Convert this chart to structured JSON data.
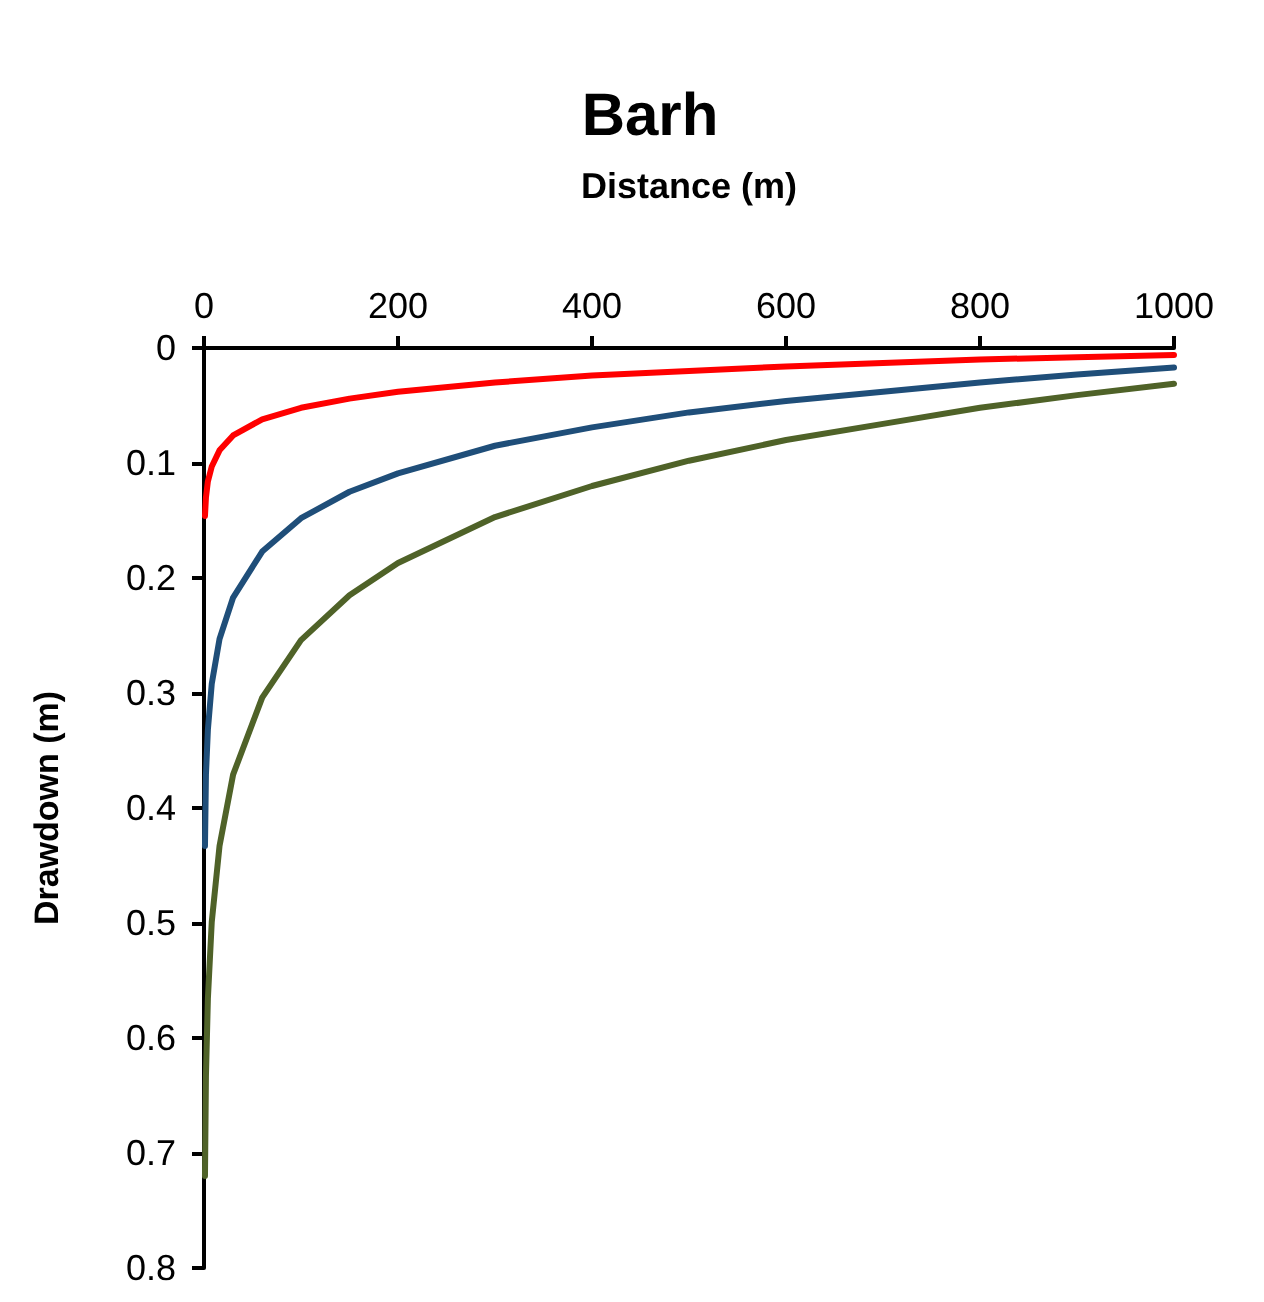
{
  "chart_data": {
    "type": "line",
    "title": "Barh",
    "xlabel": "Distance (m)",
    "ylabel": "Drawdown (m)",
    "x": [
      1,
      2,
      4,
      8,
      16,
      30,
      60,
      100,
      150,
      200,
      300,
      400,
      500,
      600,
      700,
      800,
      900,
      1000
    ],
    "series": [
      {
        "color": "#ff0000",
        "values": [
          0.146,
          0.13,
          0.116,
          0.103,
          0.089,
          0.076,
          0.062,
          0.052,
          0.044,
          0.038,
          0.03,
          0.024,
          0.02,
          0.016,
          0.013,
          0.01,
          0.008,
          0.006
        ]
      },
      {
        "color": "#1f4e79",
        "values": [
          0.433,
          0.371,
          0.332,
          0.292,
          0.253,
          0.217,
          0.177,
          0.148,
          0.125,
          0.109,
          0.085,
          0.069,
          0.056,
          0.046,
          0.038,
          0.03,
          0.023,
          0.017
        ]
      },
      {
        "color": "#4f6228",
        "values": [
          0.72,
          0.633,
          0.566,
          0.499,
          0.433,
          0.371,
          0.304,
          0.254,
          0.215,
          0.187,
          0.147,
          0.12,
          0.098,
          0.08,
          0.066,
          0.052,
          0.041,
          0.031
        ]
      }
    ],
    "xlim": [
      0,
      1000
    ],
    "xticks": [
      0,
      200,
      400,
      600,
      800,
      1000
    ],
    "ylim": [
      0.8,
      0
    ],
    "yticks": [
      0,
      0.1,
      0.2,
      0.3,
      0.4,
      0.5,
      0.6,
      0.7,
      0.8
    ],
    "grid": false,
    "marker": "none",
    "line_style": "solid"
  }
}
